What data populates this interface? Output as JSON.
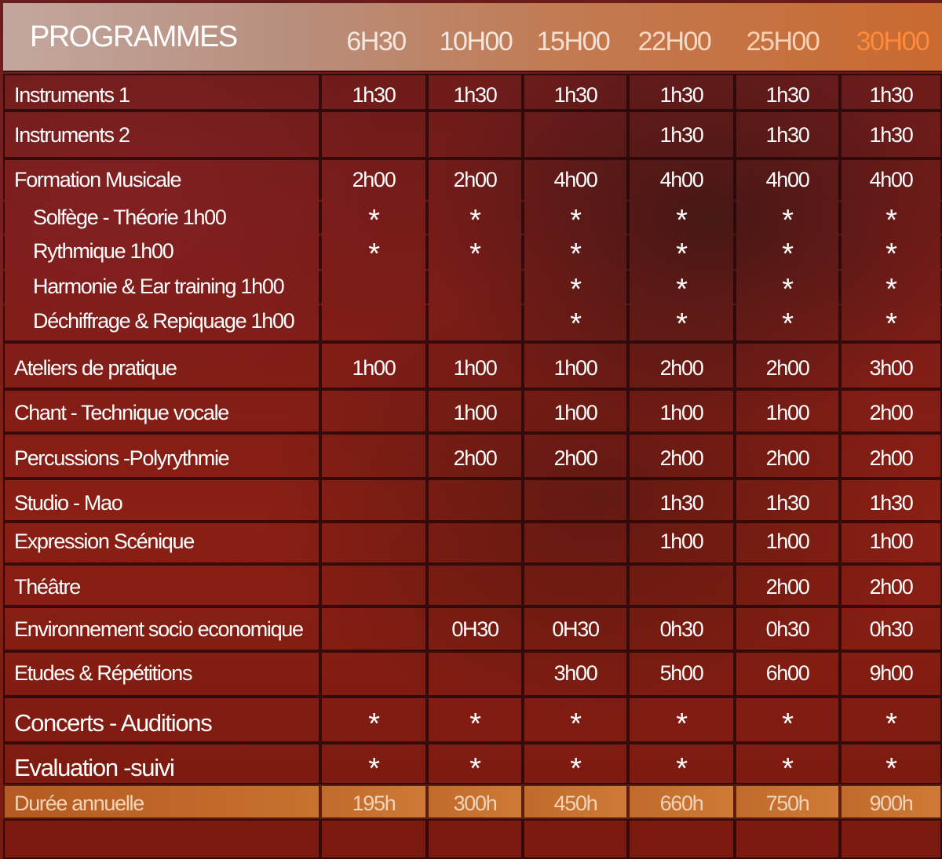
{
  "header": {
    "title": "PROGRAMMES",
    "columns": [
      "6H30",
      "10H00",
      "15H00",
      "22H00",
      "25H00",
      "30H00"
    ]
  },
  "rows": [
    {
      "label": "Instruments 1",
      "values": [
        "1h30",
        "1h30",
        "1h30",
        "1h30",
        "1h30",
        "1h30"
      ]
    },
    {
      "label": "Instruments 2",
      "values": [
        "",
        "",
        "",
        "1h30",
        "1h30",
        "1h30"
      ]
    },
    {
      "label": "Formation Musicale",
      "values": [
        "2h00",
        "2h00",
        "4h00",
        "4h00",
        "4h00",
        "4h00"
      ]
    },
    {
      "label": "Solfège - Théorie   1h00",
      "values": [
        "*",
        "*",
        "*",
        "*",
        "*",
        "*"
      ]
    },
    {
      "label": "Rythmique        1h00",
      "values": [
        "*",
        "*",
        "*",
        "*",
        "*",
        "*"
      ]
    },
    {
      "label": "Harmonie & Ear training 1h00",
      "values": [
        "",
        "",
        "*",
        "*",
        "*",
        "*"
      ]
    },
    {
      "label": "Déchiffrage & Repiquage 1h00",
      "values": [
        "",
        "",
        "*",
        "*",
        "*",
        "*"
      ]
    },
    {
      "label": "Ateliers de pratique",
      "values": [
        "1h00",
        "1h00",
        "1h00",
        "2h00",
        "2h00",
        "3h00"
      ]
    },
    {
      "label": "Chant - Technique vocale",
      "values": [
        "",
        "1h00",
        "1h00",
        "1h00",
        "1h00",
        "2h00"
      ]
    },
    {
      "label": "Percussions -Polyrythmie",
      "values": [
        "",
        "2h00",
        "2h00",
        "2h00",
        "2h00",
        "2h00"
      ]
    },
    {
      "label": "Studio - Mao",
      "values": [
        "",
        "",
        "",
        "1h30",
        "1h30",
        "1h30"
      ]
    },
    {
      "label": "Expression Scénique",
      "values": [
        "",
        "",
        "",
        "1h00",
        "1h00",
        "1h00"
      ]
    },
    {
      "label": "Théâtre",
      "values": [
        "",
        "",
        "",
        "",
        "2h00",
        "2h00"
      ]
    },
    {
      "label": "Environnement socio economique",
      "values": [
        "",
        "0H30",
        "0H30",
        "0h30",
        "0h30",
        "0h30"
      ]
    },
    {
      "label": "Etudes & Répétitions",
      "values": [
        "",
        "",
        "3h00",
        "5h00",
        "6h00",
        "9h00"
      ]
    },
    {
      "label": "Concerts - Auditions",
      "values": [
        "*",
        "*",
        "*",
        "*",
        "*",
        "*"
      ]
    },
    {
      "label": "Evaluation -suivi",
      "values": [
        "*",
        "*",
        "*",
        "*",
        "*",
        "*"
      ]
    }
  ],
  "total": {
    "label": "Durée annuelle",
    "values": [
      "195h",
      "300h",
      "450h",
      "660h",
      "750h",
      "900h"
    ]
  },
  "colors": {
    "header_col_light": "#f0e4dc",
    "header_col_accent": "#ff7a2a",
    "total_text": "#f1d4b8"
  }
}
